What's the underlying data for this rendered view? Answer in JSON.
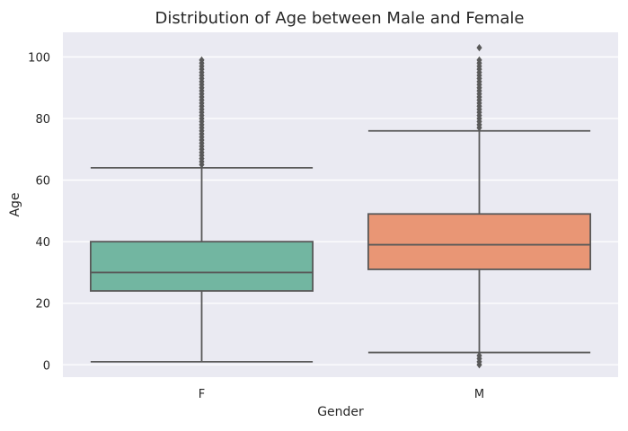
{
  "chart_data": {
    "type": "box",
    "title": "Distribution of Age between Male and Female",
    "xlabel": "Gender",
    "ylabel": "Age",
    "ylim": [
      -4,
      108
    ],
    "yticks": [
      0,
      20,
      40,
      60,
      80,
      100
    ],
    "grid": true,
    "categories": [
      "F",
      "M"
    ],
    "boxes": [
      {
        "category": "F",
        "color": "#72B6A1",
        "whisker_low": 1,
        "q1": 24,
        "median": 30,
        "q3": 40,
        "whisker_high": 64,
        "outliers_low": [],
        "outliers_high": [
          65,
          66,
          67,
          68,
          69,
          70,
          71,
          72,
          73,
          74,
          75,
          76,
          77,
          78,
          79,
          80,
          81,
          82,
          83,
          84,
          85,
          86,
          87,
          88,
          89,
          90,
          91,
          92,
          93,
          94,
          95,
          96,
          97,
          98,
          99
        ]
      },
      {
        "category": "M",
        "color": "#E99675",
        "whisker_low": 4,
        "q1": 31,
        "median": 39,
        "q3": 49,
        "whisker_high": 76,
        "outliers_low": [
          0,
          1,
          2,
          3
        ],
        "outliers_high": [
          77,
          78,
          79,
          80,
          81,
          82,
          83,
          84,
          85,
          86,
          87,
          88,
          89,
          90,
          91,
          92,
          93,
          94,
          95,
          96,
          97,
          98,
          99,
          103
        ]
      }
    ]
  }
}
